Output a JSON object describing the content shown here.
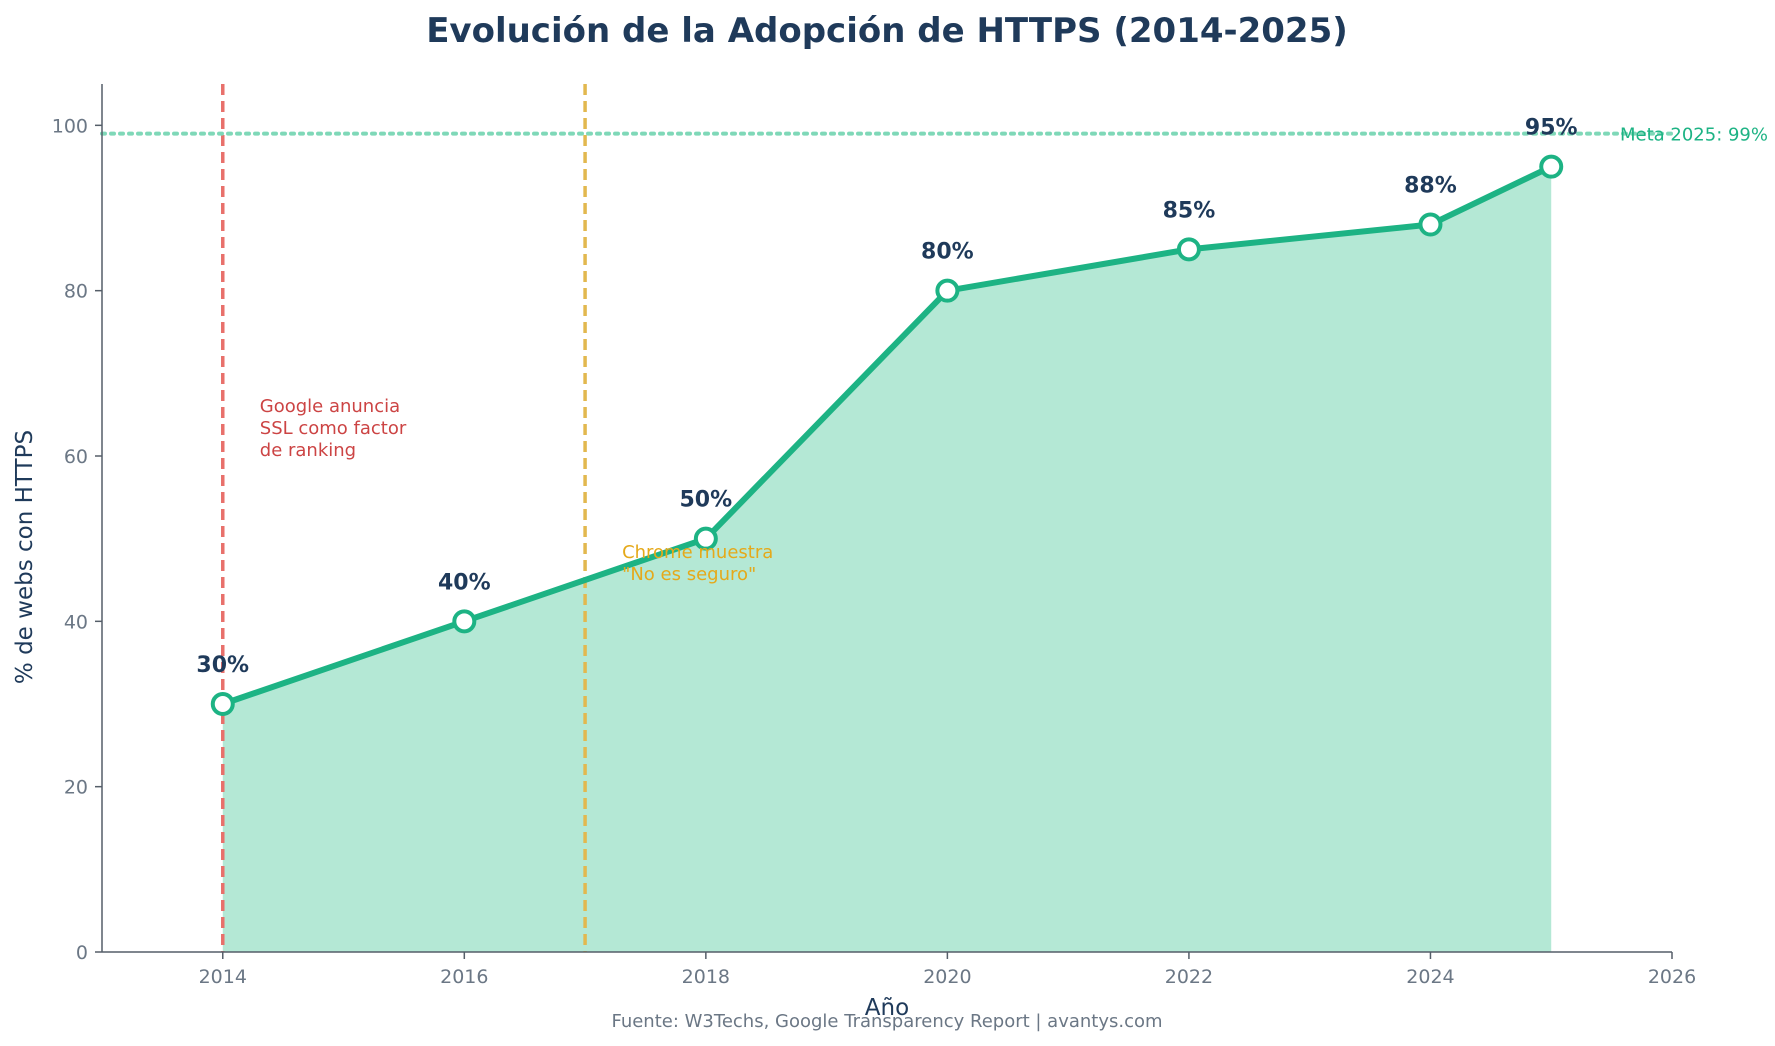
{
  "chart_data": {
    "type": "line",
    "title": "Evolución de la Adopción de HTTPS (2014-2025)",
    "xlabel": "Año",
    "ylabel": "% de webs con HTTPS",
    "xlim": [
      2013,
      2026
    ],
    "ylim": [
      0,
      105
    ],
    "x_ticks": [
      2014,
      2016,
      2018,
      2020,
      2022,
      2024,
      2026
    ],
    "y_ticks": [
      0,
      20,
      40,
      60,
      80,
      100
    ],
    "grid": false,
    "area_fill": true,
    "series": [
      {
        "x": [
          2014,
          2016,
          2018,
          2020,
          2022,
          2024,
          2025
        ],
        "values": [
          30,
          40,
          50,
          80,
          85,
          88,
          95
        ],
        "labels": [
          "30%",
          "40%",
          "50%",
          "80%",
          "85%",
          "88%",
          "95%"
        ],
        "color": "#1db384",
        "fill_color": "#b4e8d5"
      }
    ],
    "reference_lines": [
      {
        "orientation": "vertical",
        "x": 2014,
        "color": "#e8706b",
        "style": "dashed",
        "label_lines": [
          "Google anuncia",
          "SSL como factor",
          "de ranking"
        ],
        "label_color": "#cc4444"
      },
      {
        "orientation": "vertical",
        "x": 2017,
        "color": "#e2b84f",
        "style": "dashed",
        "label_lines": [
          "Chrome muestra",
          "\"No es seguro\""
        ],
        "label_color": "#e5a91a"
      },
      {
        "orientation": "horizontal",
        "y": 99,
        "color": "#7fd8b8",
        "style": "dotted",
        "label": "Meta 2025: 99%",
        "label_color": "#1db384"
      }
    ],
    "source": "Fuente: W3Techs, Google Transparency Report | avantys.com",
    "colors": {
      "title": "#1f3a5a",
      "axis": "#6b7785",
      "point_fill": "#ffffff"
    }
  }
}
